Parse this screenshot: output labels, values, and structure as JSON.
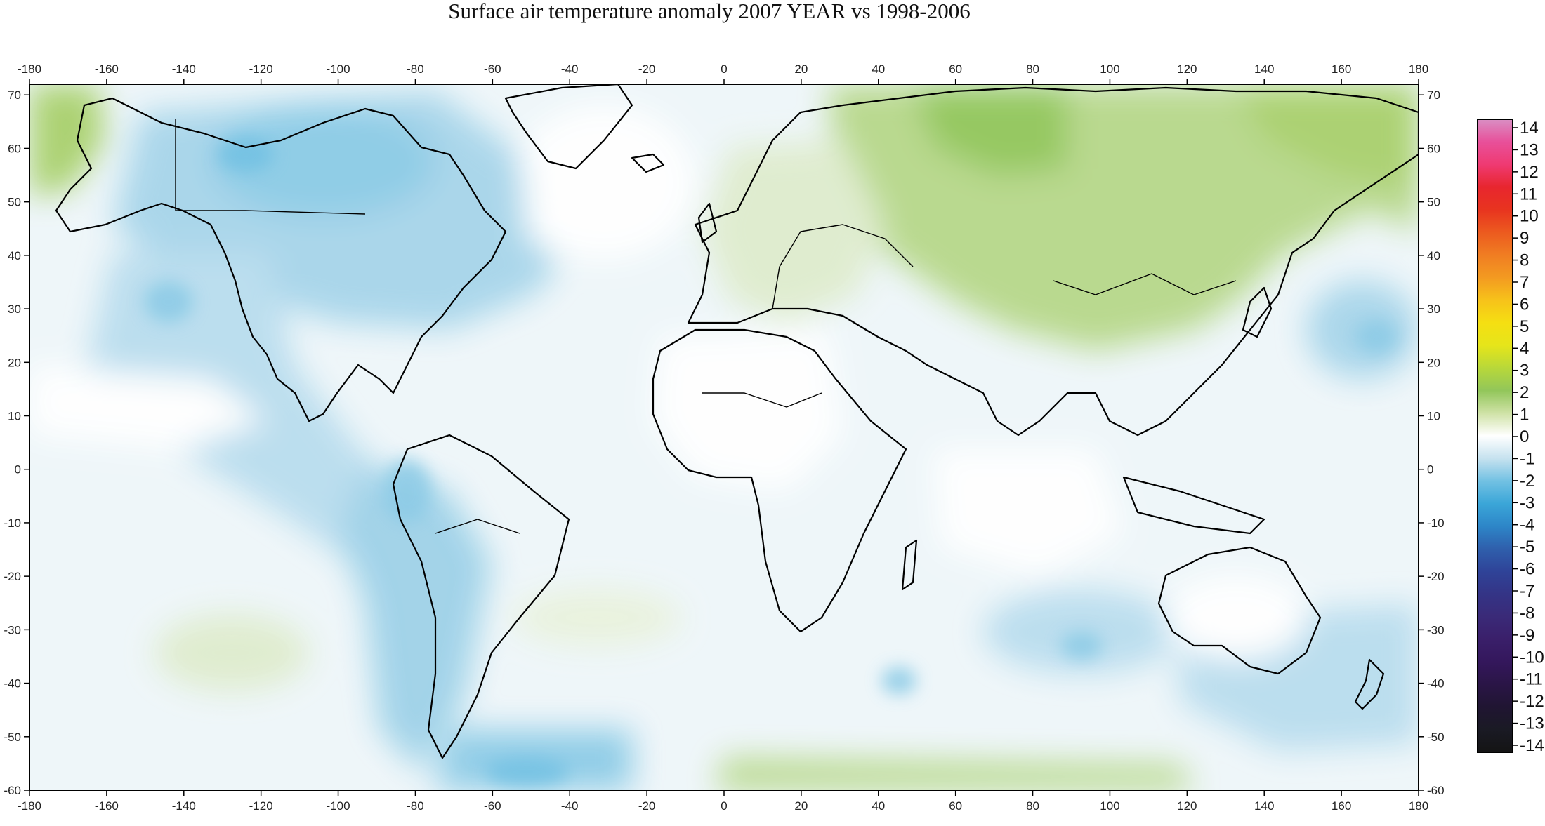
{
  "title": "Surface air temperature anomaly 2007 YEAR vs 1998-2006",
  "map": {
    "lon_ticks": [
      "-180",
      "-160",
      "-140",
      "-120",
      "-100",
      "-80",
      "-60",
      "-40",
      "-20",
      "0",
      "20",
      "40",
      "60",
      "80",
      "100",
      "120",
      "140",
      "160",
      "180"
    ],
    "lat_ticks": [
      "70",
      "60",
      "50",
      "40",
      "30",
      "20",
      "10",
      "0",
      "-10",
      "-20",
      "-30",
      "-40",
      "-50",
      "-60"
    ],
    "lon_range": [
      -180,
      180
    ],
    "lat_range": [
      -60,
      72
    ],
    "projection": "equirectangular",
    "overlays": [
      "coastlines",
      "country-borders"
    ]
  },
  "colorbar": {
    "labels": [
      "14",
      "13",
      "12",
      "11",
      "10",
      "9",
      "8",
      "7",
      "6",
      "5",
      "4",
      "3",
      "2",
      "1",
      "0",
      "-1",
      "-2",
      "-3",
      "-4",
      "-5",
      "-6",
      "-7",
      "-8",
      "-9",
      "-10",
      "-11",
      "-12",
      "-13",
      "-14"
    ],
    "range": [
      -14,
      14
    ],
    "colors": {
      "14": "#d98fc4",
      "13": "#e8509a",
      "12": "#ef3a72",
      "11": "#e8262e",
      "10": "#e8341f",
      "9": "#ec5a1f",
      "8": "#f07d22",
      "7": "#f39a21",
      "6": "#f7c21a",
      "5": "#f5df12",
      "4": "#e6e51a",
      "3": "#b8d83a",
      "2": "#92c65a",
      "1": "#cfe2a6",
      "0": "#ffffff",
      "-1": "#c6e2ef",
      "-2": "#72c1e3",
      "-3": "#3ba6d8",
      "-4": "#2d86c8",
      "-5": "#2f5fac",
      "-6": "#2f4398",
      "-7": "#343486",
      "-8": "#3a2a78",
      "-9": "#3a1f6a",
      "-10": "#34175c",
      "-11": "#2a1546",
      "-12": "#201532",
      "-13": "#1a1a24",
      "-14": "#141414"
    }
  }
}
